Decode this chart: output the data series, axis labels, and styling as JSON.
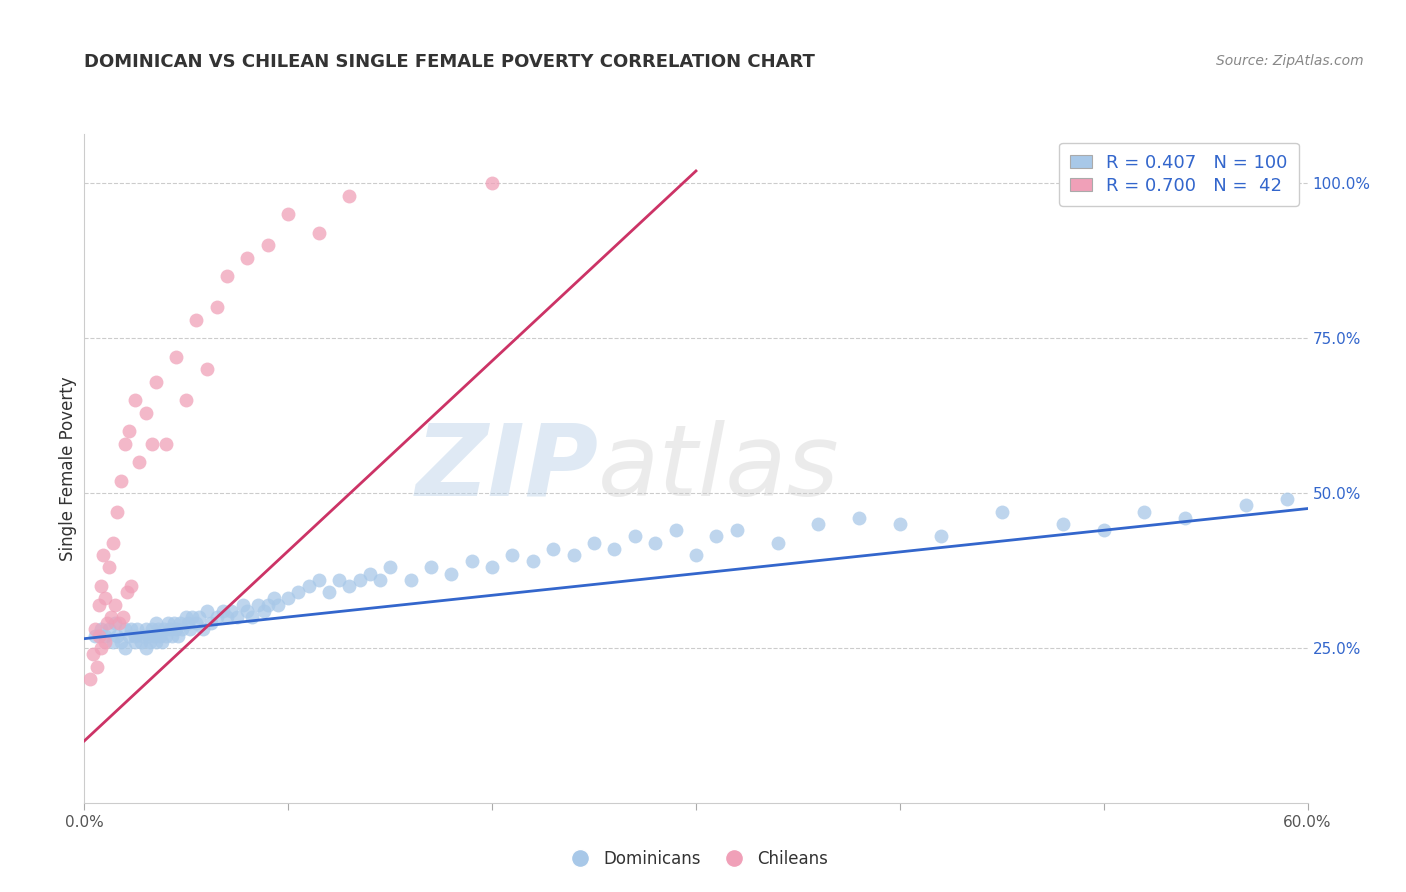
{
  "title": "DOMINICAN VS CHILEAN SINGLE FEMALE POVERTY CORRELATION CHART",
  "source": "Source: ZipAtlas.com",
  "ylabel": "Single Female Poverty",
  "xlim": [
    0.0,
    0.6
  ],
  "ylim": [
    0.0,
    1.08
  ],
  "xtick_vals": [
    0.0,
    0.1,
    0.2,
    0.3,
    0.4,
    0.5,
    0.6
  ],
  "xtick_labels_show": [
    "0.0%",
    "",
    "",
    "",
    "",
    "",
    "60.0%"
  ],
  "ytick_vals": [
    0.25,
    0.5,
    0.75,
    1.0
  ],
  "ytick_labels": [
    "25.0%",
    "50.0%",
    "75.0%",
    "100.0%"
  ],
  "dominican_color": "#A8C8E8",
  "chilean_color": "#F0A0B8",
  "dominican_line_color": "#3366CC",
  "chilean_line_color": "#CC3366",
  "dominican_R": 0.407,
  "dominican_N": 100,
  "chilean_R": 0.7,
  "chilean_N": 42,
  "background_color": "#FFFFFF",
  "watermark_zip": "ZIP",
  "watermark_atlas": "atlas",
  "grid_color": "#CCCCCC",
  "legend_box_color": "#A8C8E8",
  "legend_box_color2": "#F0A0B8",
  "dominican_x": [
    0.005,
    0.008,
    0.01,
    0.012,
    0.014,
    0.015,
    0.016,
    0.018,
    0.02,
    0.02,
    0.022,
    0.023,
    0.025,
    0.025,
    0.026,
    0.028,
    0.029,
    0.03,
    0.03,
    0.031,
    0.032,
    0.033,
    0.034,
    0.035,
    0.035,
    0.036,
    0.037,
    0.038,
    0.039,
    0.04,
    0.041,
    0.042,
    0.043,
    0.044,
    0.045,
    0.046,
    0.047,
    0.048,
    0.05,
    0.051,
    0.052,
    0.053,
    0.055,
    0.056,
    0.058,
    0.06,
    0.062,
    0.065,
    0.068,
    0.07,
    0.072,
    0.075,
    0.078,
    0.08,
    0.082,
    0.085,
    0.088,
    0.09,
    0.093,
    0.095,
    0.1,
    0.105,
    0.11,
    0.115,
    0.12,
    0.125,
    0.13,
    0.135,
    0.14,
    0.145,
    0.15,
    0.16,
    0.17,
    0.18,
    0.19,
    0.2,
    0.21,
    0.22,
    0.23,
    0.24,
    0.25,
    0.26,
    0.27,
    0.28,
    0.29,
    0.3,
    0.31,
    0.32,
    0.34,
    0.36,
    0.38,
    0.4,
    0.42,
    0.45,
    0.48,
    0.5,
    0.52,
    0.54,
    0.57,
    0.59
  ],
  "dominican_y": [
    0.27,
    0.28,
    0.27,
    0.28,
    0.26,
    0.29,
    0.27,
    0.26,
    0.25,
    0.28,
    0.27,
    0.28,
    0.26,
    0.27,
    0.28,
    0.26,
    0.27,
    0.25,
    0.28,
    0.27,
    0.26,
    0.28,
    0.27,
    0.26,
    0.29,
    0.28,
    0.27,
    0.26,
    0.28,
    0.27,
    0.29,
    0.28,
    0.27,
    0.29,
    0.28,
    0.27,
    0.29,
    0.28,
    0.3,
    0.29,
    0.28,
    0.3,
    0.29,
    0.3,
    0.28,
    0.31,
    0.29,
    0.3,
    0.31,
    0.3,
    0.31,
    0.3,
    0.32,
    0.31,
    0.3,
    0.32,
    0.31,
    0.32,
    0.33,
    0.32,
    0.33,
    0.34,
    0.35,
    0.36,
    0.34,
    0.36,
    0.35,
    0.36,
    0.37,
    0.36,
    0.38,
    0.36,
    0.38,
    0.37,
    0.39,
    0.38,
    0.4,
    0.39,
    0.41,
    0.4,
    0.42,
    0.41,
    0.43,
    0.42,
    0.44,
    0.4,
    0.43,
    0.44,
    0.42,
    0.45,
    0.46,
    0.45,
    0.43,
    0.47,
    0.45,
    0.44,
    0.47,
    0.46,
    0.48,
    0.49
  ],
  "chilean_x": [
    0.003,
    0.004,
    0.005,
    0.006,
    0.007,
    0.007,
    0.008,
    0.008,
    0.009,
    0.01,
    0.01,
    0.011,
    0.012,
    0.013,
    0.014,
    0.015,
    0.016,
    0.017,
    0.018,
    0.019,
    0.02,
    0.021,
    0.022,
    0.023,
    0.025,
    0.027,
    0.03,
    0.033,
    0.035,
    0.04,
    0.045,
    0.05,
    0.055,
    0.06,
    0.065,
    0.07,
    0.08,
    0.09,
    0.1,
    0.115,
    0.13,
    0.2
  ],
  "chilean_y": [
    0.2,
    0.24,
    0.28,
    0.22,
    0.32,
    0.27,
    0.35,
    0.25,
    0.4,
    0.26,
    0.33,
    0.29,
    0.38,
    0.3,
    0.42,
    0.32,
    0.47,
    0.29,
    0.52,
    0.3,
    0.58,
    0.34,
    0.6,
    0.35,
    0.65,
    0.55,
    0.63,
    0.58,
    0.68,
    0.58,
    0.72,
    0.65,
    0.78,
    0.7,
    0.8,
    0.85,
    0.88,
    0.9,
    0.95,
    0.92,
    0.98,
    1.0
  ],
  "dom_line_x0": 0.0,
  "dom_line_x1": 0.6,
  "dom_line_y0": 0.265,
  "dom_line_y1": 0.475,
  "chi_line_x0": 0.0,
  "chi_line_x1": 0.3,
  "chi_line_y0": 0.1,
  "chi_line_y1": 1.02
}
